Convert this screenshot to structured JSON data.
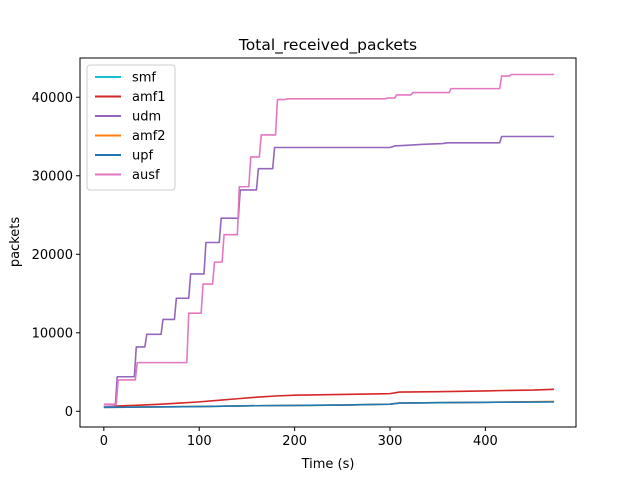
{
  "chart_data": {
    "type": "line",
    "title": "Total_received_packets",
    "xlabel": "Time (s)",
    "ylabel": "packets",
    "xlim": [
      -25,
      495
    ],
    "ylim": [
      -2000,
      45000
    ],
    "x_ticks": [
      0,
      100,
      200,
      300,
      400
    ],
    "y_ticks": [
      0,
      10000,
      20000,
      30000,
      40000
    ],
    "legend_position": "upper-left",
    "grid": false,
    "series": [
      {
        "name": "smf",
        "color": "#17becf",
        "points": [
          [
            0,
            500
          ],
          [
            50,
            550
          ],
          [
            100,
            600
          ],
          [
            150,
            700
          ],
          [
            200,
            750
          ],
          [
            250,
            800
          ],
          [
            300,
            900
          ],
          [
            310,
            1050
          ],
          [
            350,
            1100
          ],
          [
            400,
            1150
          ],
          [
            472,
            1200
          ]
        ]
      },
      {
        "name": "amf1",
        "color": "#d62728",
        "points": [
          [
            0,
            600
          ],
          [
            20,
            700
          ],
          [
            40,
            800
          ],
          [
            60,
            900
          ],
          [
            80,
            1050
          ],
          [
            100,
            1200
          ],
          [
            120,
            1400
          ],
          [
            140,
            1600
          ],
          [
            160,
            1800
          ],
          [
            180,
            1950
          ],
          [
            200,
            2050
          ],
          [
            250,
            2150
          ],
          [
            300,
            2250
          ],
          [
            310,
            2450
          ],
          [
            350,
            2500
          ],
          [
            400,
            2600
          ],
          [
            420,
            2650
          ],
          [
            450,
            2700
          ],
          [
            472,
            2800
          ]
        ]
      },
      {
        "name": "udm",
        "color": "#9467bd",
        "points": [
          [
            0,
            600
          ],
          [
            12,
            600
          ],
          [
            14,
            4400
          ],
          [
            32,
            4400
          ],
          [
            34,
            8200
          ],
          [
            43,
            8200
          ],
          [
            45,
            9800
          ],
          [
            60,
            9800
          ],
          [
            62,
            11700
          ],
          [
            74,
            11700
          ],
          [
            76,
            14400
          ],
          [
            89,
            14400
          ],
          [
            91,
            17500
          ],
          [
            105,
            17500
          ],
          [
            107,
            21500
          ],
          [
            121,
            21500
          ],
          [
            123,
            24600
          ],
          [
            141,
            24600
          ],
          [
            143,
            28200
          ],
          [
            160,
            28200
          ],
          [
            162,
            30900
          ],
          [
            177,
            30900
          ],
          [
            179,
            33600
          ],
          [
            300,
            33600
          ],
          [
            305,
            33800
          ],
          [
            320,
            33900
          ],
          [
            335,
            34000
          ],
          [
            355,
            34100
          ],
          [
            360,
            34200
          ],
          [
            415,
            34200
          ],
          [
            417,
            35000
          ],
          [
            472,
            35000
          ]
        ]
      },
      {
        "name": "amf2",
        "color": "#ff7f0e",
        "points": [
          [
            0,
            500
          ],
          [
            50,
            550
          ],
          [
            100,
            600
          ],
          [
            150,
            700
          ],
          [
            200,
            750
          ],
          [
            250,
            800
          ],
          [
            300,
            900
          ],
          [
            310,
            1050
          ],
          [
            350,
            1100
          ],
          [
            400,
            1150
          ],
          [
            472,
            1250
          ]
        ]
      },
      {
        "name": "upf",
        "color": "#1f77b4",
        "points": [
          [
            0,
            500
          ],
          [
            50,
            550
          ],
          [
            100,
            600
          ],
          [
            150,
            700
          ],
          [
            200,
            750
          ],
          [
            250,
            800
          ],
          [
            300,
            900
          ],
          [
            310,
            1050
          ],
          [
            350,
            1100
          ],
          [
            400,
            1150
          ],
          [
            472,
            1200
          ]
        ]
      },
      {
        "name": "ausf",
        "color": "#e377c2",
        "points": [
          [
            0,
            900
          ],
          [
            13,
            900
          ],
          [
            15,
            4000
          ],
          [
            33,
            4000
          ],
          [
            35,
            6200
          ],
          [
            87,
            6200
          ],
          [
            89,
            12500
          ],
          [
            102,
            12500
          ],
          [
            104,
            16200
          ],
          [
            114,
            16200
          ],
          [
            116,
            19000
          ],
          [
            124,
            19000
          ],
          [
            126,
            22500
          ],
          [
            140,
            22500
          ],
          [
            142,
            28600
          ],
          [
            152,
            28600
          ],
          [
            154,
            32400
          ],
          [
            163,
            32400
          ],
          [
            165,
            35200
          ],
          [
            180,
            35200
          ],
          [
            182,
            39700
          ],
          [
            190,
            39700
          ],
          [
            192,
            39800
          ],
          [
            295,
            39800
          ],
          [
            297,
            39900
          ],
          [
            305,
            39900
          ],
          [
            307,
            40300
          ],
          [
            322,
            40300
          ],
          [
            324,
            40600
          ],
          [
            362,
            40600
          ],
          [
            364,
            41100
          ],
          [
            415,
            41100
          ],
          [
            417,
            42700
          ],
          [
            425,
            42700
          ],
          [
            427,
            42900
          ],
          [
            472,
            42900
          ]
        ]
      }
    ]
  }
}
